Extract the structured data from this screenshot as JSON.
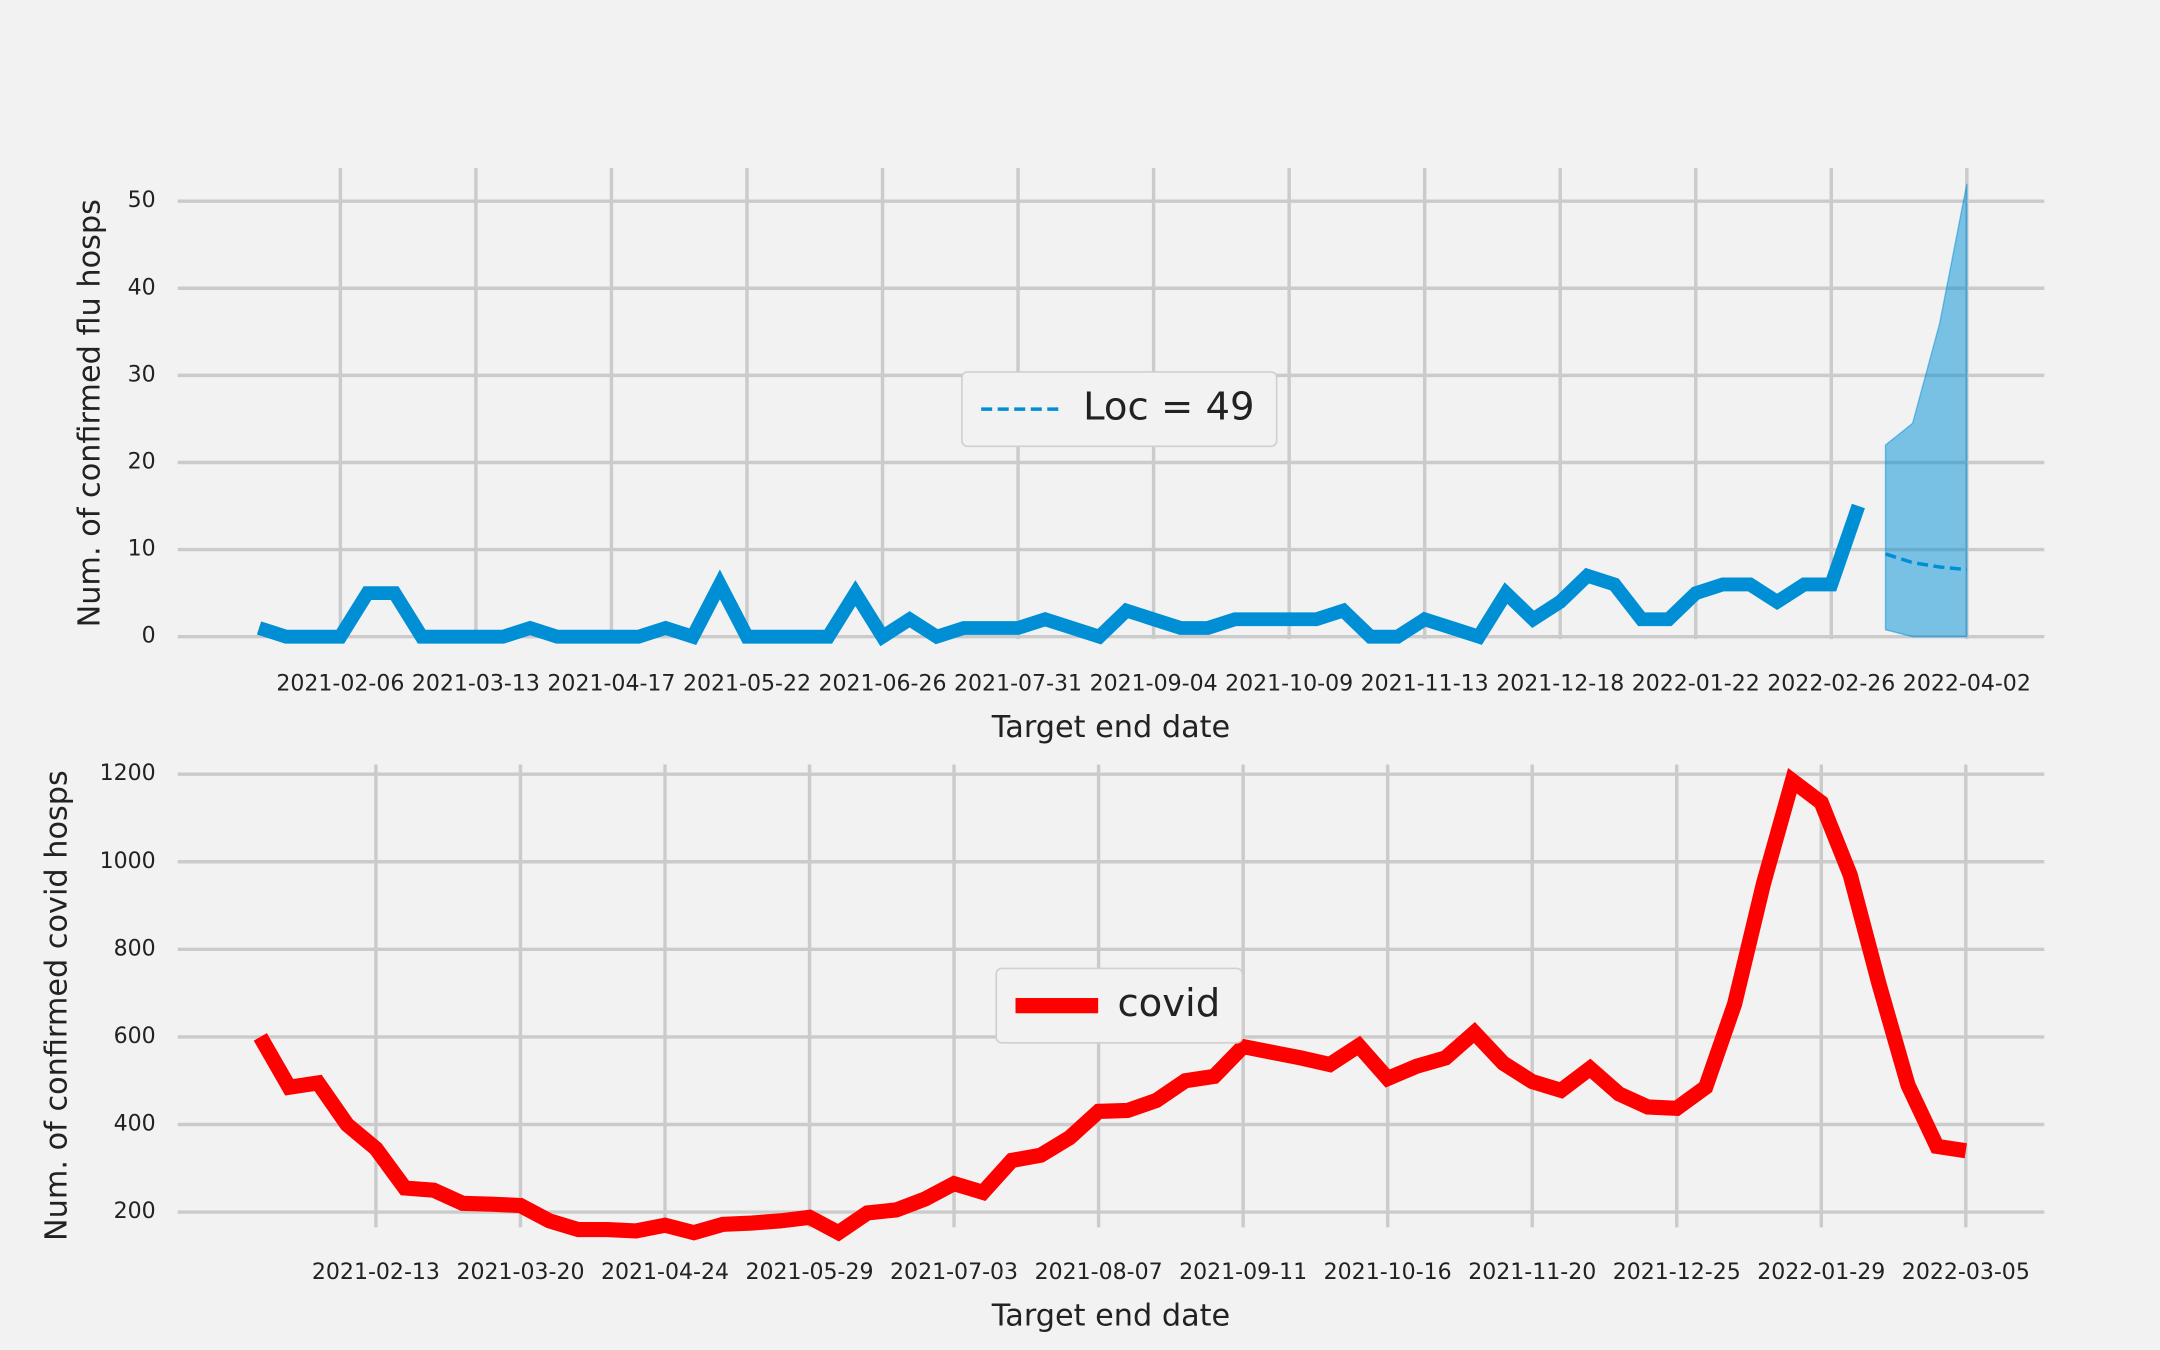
{
  "chart_data": [
    {
      "type": "line",
      "xlabel": "Target end date",
      "ylabel": "Num. of confirmed flu hosps",
      "x": [
        "2021-01-16",
        "2021-01-23",
        "2021-01-30",
        "2021-02-06",
        "2021-02-13",
        "2021-02-20",
        "2021-02-27",
        "2021-03-06",
        "2021-03-13",
        "2021-03-20",
        "2021-03-27",
        "2021-04-03",
        "2021-04-10",
        "2021-04-17",
        "2021-04-24",
        "2021-05-01",
        "2021-05-08",
        "2021-05-15",
        "2021-05-22",
        "2021-05-29",
        "2021-06-05",
        "2021-06-12",
        "2021-06-19",
        "2021-06-26",
        "2021-07-03",
        "2021-07-10",
        "2021-07-17",
        "2021-07-24",
        "2021-07-31",
        "2021-08-07",
        "2021-08-14",
        "2021-08-21",
        "2021-08-28",
        "2021-09-04",
        "2021-09-11",
        "2021-09-18",
        "2021-09-25",
        "2021-10-02",
        "2021-10-09",
        "2021-10-16",
        "2021-10-23",
        "2021-10-30",
        "2021-11-06",
        "2021-11-13",
        "2021-11-20",
        "2021-11-27",
        "2021-12-04",
        "2021-12-11",
        "2021-12-18",
        "2021-12-25",
        "2022-01-01",
        "2022-01-08",
        "2022-01-15",
        "2022-01-22",
        "2022-01-29",
        "2022-02-05",
        "2022-02-12",
        "2022-02-19",
        "2022-02-26",
        "2022-03-05"
      ],
      "series": [
        {
          "color": "#008fd5",
          "values": [
            1,
            0,
            0,
            0,
            5,
            5,
            0,
            0,
            0,
            0,
            1,
            0,
            0,
            0,
            0,
            1,
            0,
            6,
            0,
            0,
            0,
            0,
            5,
            0,
            2,
            0,
            1,
            1,
            1,
            2,
            1,
            0,
            3,
            2,
            1,
            1,
            2,
            2,
            2,
            2,
            3,
            0,
            0,
            2,
            1,
            0,
            5,
            2,
            4,
            7,
            6,
            2,
            2,
            5,
            6,
            6,
            4,
            6,
            6,
            15
          ]
        }
      ],
      "forecast": {
        "name": "Loc = 49",
        "color": "#008fd5",
        "x": [
          "2022-03-12",
          "2022-03-19",
          "2022-03-26",
          "2022-04-02"
        ],
        "values": [
          9.5,
          8.5,
          8,
          7.7
        ],
        "lower": [
          0.8,
          0,
          0,
          0
        ],
        "upper": [
          22,
          24.5,
          36,
          52
        ]
      },
      "xlim": [
        "2020-12-26",
        "2022-04-22"
      ],
      "xticks": [
        "2021-02-06",
        "2021-03-13",
        "2021-04-17",
        "2021-05-22",
        "2021-06-26",
        "2021-07-31",
        "2021-09-04",
        "2021-10-09",
        "2021-11-13",
        "2021-12-18",
        "2022-01-22",
        "2022-02-26",
        "2022-04-02"
      ],
      "ylim": [
        -2.5,
        53.8
      ],
      "yticks": [
        0,
        10,
        20,
        30,
        40,
        50
      ],
      "grid": true
    },
    {
      "type": "line",
      "xlabel": "Target end date",
      "ylabel": "Num. of confirmed covid hosps",
      "x": [
        "2021-01-16",
        "2021-01-23",
        "2021-01-30",
        "2021-02-06",
        "2021-02-13",
        "2021-02-20",
        "2021-02-27",
        "2021-03-06",
        "2021-03-13",
        "2021-03-20",
        "2021-03-27",
        "2021-04-03",
        "2021-04-10",
        "2021-04-17",
        "2021-04-24",
        "2021-05-01",
        "2021-05-08",
        "2021-05-15",
        "2021-05-22",
        "2021-05-29",
        "2021-06-05",
        "2021-06-12",
        "2021-06-19",
        "2021-06-26",
        "2021-07-03",
        "2021-07-10",
        "2021-07-17",
        "2021-07-24",
        "2021-07-31",
        "2021-08-07",
        "2021-08-14",
        "2021-08-21",
        "2021-08-28",
        "2021-09-04",
        "2021-09-11",
        "2021-09-18",
        "2021-09-25",
        "2021-10-02",
        "2021-10-09",
        "2021-10-16",
        "2021-10-23",
        "2021-10-30",
        "2021-11-06",
        "2021-11-13",
        "2021-11-20",
        "2021-11-27",
        "2021-12-04",
        "2021-12-11",
        "2021-12-18",
        "2021-12-25",
        "2022-01-01",
        "2022-01-08",
        "2022-01-15",
        "2022-01-22",
        "2022-01-29",
        "2022-02-05",
        "2022-02-12",
        "2022-02-19",
        "2022-02-26",
        "2022-03-05"
      ],
      "series": [
        {
          "name": "covid",
          "color": "#ff0000",
          "values": [
            600,
            485,
            495,
            400,
            345,
            255,
            250,
            220,
            218,
            215,
            180,
            160,
            160,
            157,
            170,
            153,
            172,
            175,
            180,
            188,
            153,
            198,
            205,
            230,
            265,
            245,
            318,
            330,
            370,
            430,
            432,
            455,
            500,
            510,
            578,
            565,
            552,
            537,
            580,
            505,
            533,
            552,
            610,
            540,
            498,
            478,
            528,
            470,
            440,
            437,
            485,
            675,
            950,
            1185,
            1135,
            970,
            720,
            490,
            350,
            340
          ]
        }
      ],
      "xlim": [
        "2020-12-27",
        "2022-03-24"
      ],
      "xticks": [
        "2021-02-13",
        "2021-03-20",
        "2021-04-24",
        "2021-05-29",
        "2021-07-03",
        "2021-08-07",
        "2021-09-11",
        "2021-10-16",
        "2021-11-20",
        "2021-12-25",
        "2022-01-29",
        "2022-03-05"
      ],
      "ylim": [
        121,
        1222
      ],
      "yticks": [
        200,
        400,
        600,
        800,
        1000,
        1200
      ],
      "grid": true
    }
  ]
}
